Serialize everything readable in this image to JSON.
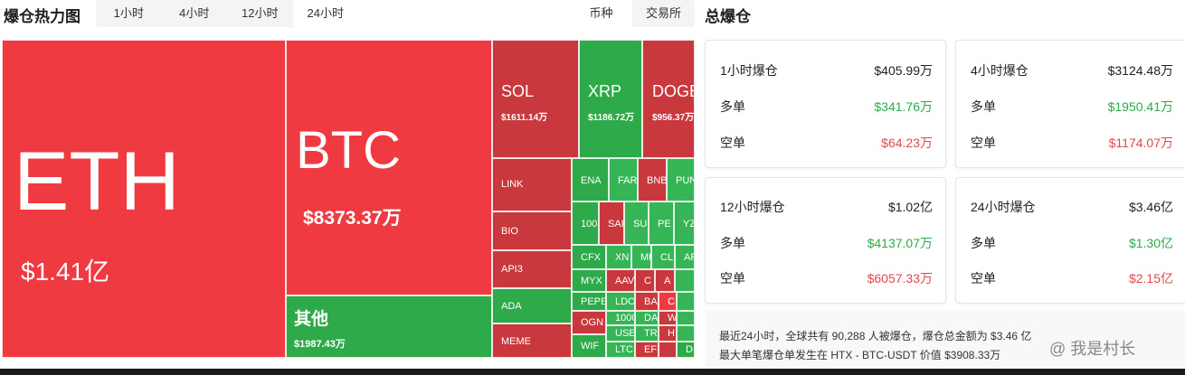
{
  "header": {
    "title": "爆仓热力图",
    "time_tabs": [
      "1小时",
      "4小时",
      "12小时",
      "24小时"
    ],
    "active_time_tab": "24小时",
    "view_tabs": [
      "币种",
      "交易所"
    ],
    "summary_title": "总爆仓"
  },
  "heatmap": {
    "eth": {
      "symbol": "ETH",
      "value": "$1.41亿"
    },
    "btc": {
      "symbol": "BTC",
      "value": "$8373.37万"
    },
    "other": {
      "symbol": "其他",
      "value": "$1987.43万"
    },
    "sol": {
      "symbol": "SOL",
      "value": "$1611.14万"
    },
    "xrp": {
      "symbol": "XRP",
      "value": "$1186.72万"
    },
    "doge": {
      "symbol": "DOGE",
      "value": "$956.37万"
    },
    "small": [
      "LINK",
      "BIO",
      "API3",
      "ADA",
      "MEME"
    ],
    "mini": [
      "ENA",
      "FAR",
      "BNB",
      "PUN",
      "100",
      "SAI",
      "SUI",
      "PE",
      "YZ",
      "CFX",
      "XN",
      "MK",
      "CL",
      "AR",
      "MYX",
      "AAV",
      "C",
      "A",
      "PEPE",
      "LDO",
      "BA",
      "C",
      "OGN",
      "1000",
      "DA",
      "W",
      "WIF",
      "USE",
      "TR",
      "H",
      "LTC",
      "EF",
      "D"
    ]
  },
  "cards": [
    {
      "title": "1小时爆仓",
      "total": "$405.99万",
      "long_label": "多单",
      "long": "$341.76万",
      "short_label": "空单",
      "short": "$64.23万"
    },
    {
      "title": "4小时爆仓",
      "total": "$3124.48万",
      "long_label": "多单",
      "long": "$1950.41万",
      "short_label": "空单",
      "short": "$1174.07万"
    },
    {
      "title": "12小时爆仓",
      "total": "$1.02亿",
      "long_label": "多单",
      "long": "$4137.07万",
      "short_label": "空单",
      "short": "$6057.33万"
    },
    {
      "title": "24小时爆仓",
      "total": "$3.46亿",
      "long_label": "多单",
      "long": "$1.30亿",
      "short_label": "空单",
      "short": "$2.15亿"
    }
  ],
  "summary": {
    "line1": "最近24小时，全球共有 90,288 人被爆仓，爆仓总金额为 $3.46 亿",
    "line2": "最大单笔爆仓单发生在 HTX - BTC-USDT 价值 $3908.33万"
  },
  "watermark": "@ 我是村长",
  "colors": {
    "red": "#f03a41",
    "dark_red": "#c8383c",
    "green": "#2eaa4a",
    "short_text": "#e2474f"
  }
}
